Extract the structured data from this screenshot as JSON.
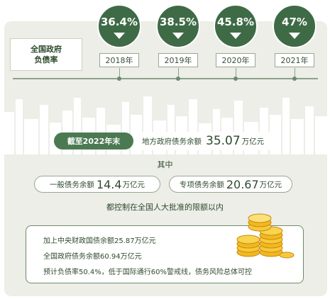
{
  "header": {
    "title_line1": "全国政府",
    "title_line2": "负债率"
  },
  "timeline": [
    {
      "rate": "36.4%",
      "year": "2018年"
    },
    {
      "rate": "38.5%",
      "year": "2019年"
    },
    {
      "rate": "45.8%",
      "year": "2020年"
    },
    {
      "rate": "47%",
      "year": "2021年"
    }
  ],
  "summary": {
    "date_label": "截至2022年末",
    "local_debt_label": "地方政府债务余额",
    "local_debt_value": "35.07",
    "local_debt_unit": "万亿元",
    "sub_label": "其中",
    "general_label": "一般债务余额",
    "general_value": "14.4",
    "general_unit": "万亿元",
    "special_label": "专项债务余额",
    "special_value": "20.67",
    "special_unit": "万亿元",
    "control_note": "都控制在全国人大批准的限额以内"
  },
  "info": {
    "line1": "加上中央财政国债余额25.87万亿元",
    "line2": "全国政府债务余额60.94万亿元",
    "line3": "预计负债率50.4%，低于国际通行60%警戒线，债务风险总体可控"
  },
  "colors": {
    "accent_green": "#3e6b46",
    "panel_bg": "#eceee7",
    "skyline": "#ffffff"
  },
  "icons": {
    "coins": "coin-stack-icon"
  }
}
